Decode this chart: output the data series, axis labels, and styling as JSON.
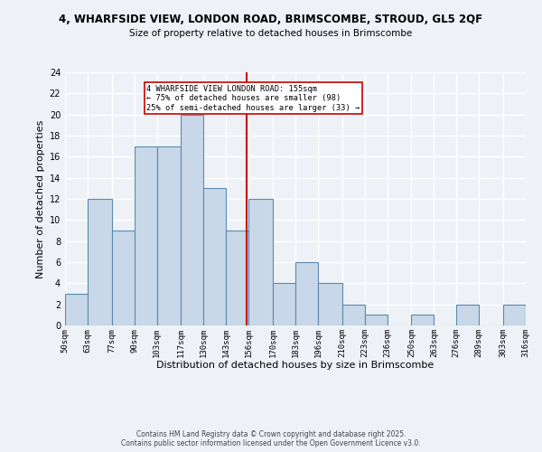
{
  "title1": "4, WHARFSIDE VIEW, LONDON ROAD, BRIMSCOMBE, STROUD, GL5 2QF",
  "title2": "Size of property relative to detached houses in Brimscombe",
  "xlabel": "Distribution of detached houses by size in Brimscombe",
  "ylabel": "Number of detached properties",
  "bin_edges": [
    50,
    63,
    77,
    90,
    103,
    117,
    130,
    143,
    156,
    170,
    183,
    196,
    210,
    223,
    236,
    250,
    263,
    276,
    289,
    303,
    316
  ],
  "bin_labels": [
    "50sqm",
    "63sqm",
    "77sqm",
    "90sqm",
    "103sqm",
    "117sqm",
    "130sqm",
    "143sqm",
    "156sqm",
    "170sqm",
    "183sqm",
    "196sqm",
    "210sqm",
    "223sqm",
    "236sqm",
    "250sqm",
    "263sqm",
    "276sqm",
    "289sqm",
    "303sqm",
    "316sqm"
  ],
  "counts": [
    3,
    12,
    9,
    17,
    17,
    20,
    13,
    9,
    12,
    4,
    6,
    4,
    2,
    1,
    0,
    1,
    0,
    2,
    0,
    2
  ],
  "bar_color": "#c8d8e8",
  "bar_edge_color": "#5a8ab0",
  "vline_x": 155,
  "vline_color": "#cc0000",
  "annotation_line1": "4 WHARFSIDE VIEW LONDON ROAD: 155sqm",
  "annotation_line2": "← 75% of detached houses are smaller (98)",
  "annotation_line3": "25% of semi-detached houses are larger (33) →",
  "annotation_box_color": "#ffffff",
  "annotation_box_edge": "#cc0000",
  "ylim": [
    0,
    24
  ],
  "yticks": [
    0,
    2,
    4,
    6,
    8,
    10,
    12,
    14,
    16,
    18,
    20,
    22,
    24
  ],
  "footer1": "Contains HM Land Registry data © Crown copyright and database right 2025.",
  "footer2": "Contains public sector information licensed under the Open Government Licence v3.0.",
  "bg_color": "#eef2f7",
  "grid_color": "#ffffff"
}
